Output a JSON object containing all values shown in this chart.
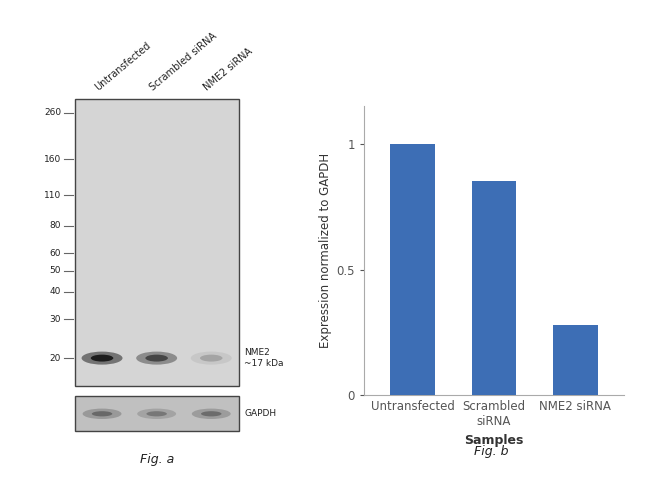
{
  "fig_width": 6.5,
  "fig_height": 4.82,
  "dpi": 100,
  "background_color": "#ffffff",
  "panel_a": {
    "fig_label": "Fig. a",
    "lane_labels": [
      "Untransfected",
      "Scrambled siRNA",
      "NME2 siRNA"
    ],
    "mw_markers": [
      260,
      160,
      110,
      80,
      60,
      50,
      40,
      30,
      20
    ],
    "gel_bg_color": "#d5d5d5",
    "gel_border_color": "#444444",
    "annotation_nme2": "NME2\n~17 kDa",
    "annotation_gapdh": "GAPDH",
    "nme2_band_intensities": [
      1.0,
      0.82,
      0.4
    ],
    "gapdh_band_intensities": [
      0.8,
      0.72,
      0.78
    ],
    "gapdh_bg_color": "#c0c0c0"
  },
  "panel_b": {
    "fig_label": "Fig. b",
    "categories": [
      "Untransfected",
      "Scrambled\nsiRNA",
      "NME2 siRNA"
    ],
    "values": [
      1.0,
      0.85,
      0.28
    ],
    "bar_color": "#3d6eb5",
    "bar_width": 0.55,
    "ylim": [
      0,
      1.15
    ],
    "yticks": [
      0,
      0.5,
      1
    ],
    "ytick_labels": [
      "0",
      "0.5",
      "1"
    ],
    "ylabel": "Expression normalized to GAPDH",
    "xlabel": "Samples",
    "xlabel_fontweight": "bold",
    "axis_color": "#aaaaaa",
    "tick_color": "#555555",
    "font_size_labels": 9,
    "font_size_ticks": 8.5,
    "font_size_ylabel": 8.5
  }
}
